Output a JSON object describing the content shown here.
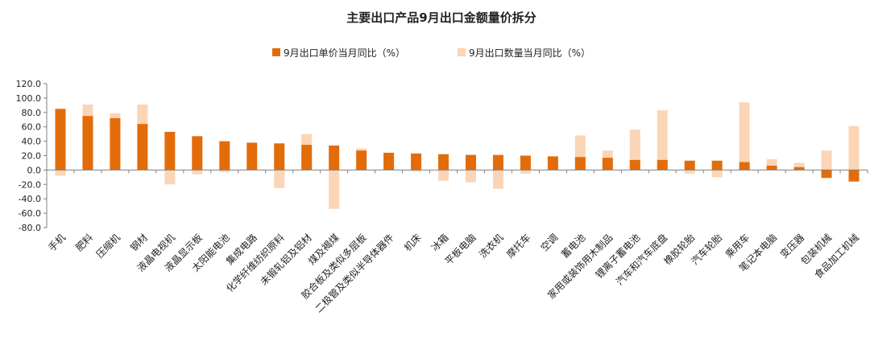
{
  "chart_data": {
    "type": "bar",
    "title": "主要出口产品9月出口金额量价拆分",
    "xlabel": "",
    "ylabel": "",
    "ylim": [
      -80,
      120
    ],
    "yticks": [
      "120.0",
      "100.0",
      "80.0",
      "60.0",
      "40.0",
      "20.0",
      "0.0",
      "-20.0",
      "-40.0",
      "-60.0",
      "-80.0"
    ],
    "legend_position": "top-center",
    "grid": false,
    "categories": [
      "手机",
      "肥料",
      "压缩机",
      "钢材",
      "液晶电视机",
      "液晶显示板",
      "太阳能电池",
      "集成电路",
      "化学纤维纺织原料",
      "未锻轧铝及铝材",
      "煤及褐煤",
      "胶合板及类似多层板",
      "二极管及类似半导体器件",
      "机床",
      "冰箱",
      "平板电脑",
      "洗衣机",
      "摩托车",
      "空调",
      "蓄电池",
      "家用或装饰用木制品",
      "锂离子蓄电池",
      "汽车和汽车底盘",
      "橡胶轮胎",
      "汽车轮胎",
      "乘用车",
      "笔记本电脑",
      "变压器",
      "包装机械",
      "食品加工机械"
    ],
    "series": [
      {
        "name": "9月出口单价当月同比（%）",
        "color": "#E36C0A",
        "values": [
          85,
          75,
          72,
          64,
          53,
          47,
          40,
          38,
          37,
          35,
          34,
          27,
          24,
          23,
          22,
          21,
          21,
          20,
          19,
          18,
          17,
          14,
          14,
          13,
          13,
          11,
          6,
          4,
          -11,
          -16
        ]
      },
      {
        "name": "9月出口数量当月同比（%）",
        "color": "#FBD5B5",
        "values": [
          -8,
          91,
          79,
          91,
          -20,
          -6,
          -3,
          0,
          -25,
          50,
          -54,
          30,
          0,
          -2,
          -15,
          -17,
          -26,
          -5,
          0,
          48,
          27,
          56,
          83,
          -5,
          -10,
          94,
          15,
          10,
          27,
          61
        ]
      }
    ]
  }
}
